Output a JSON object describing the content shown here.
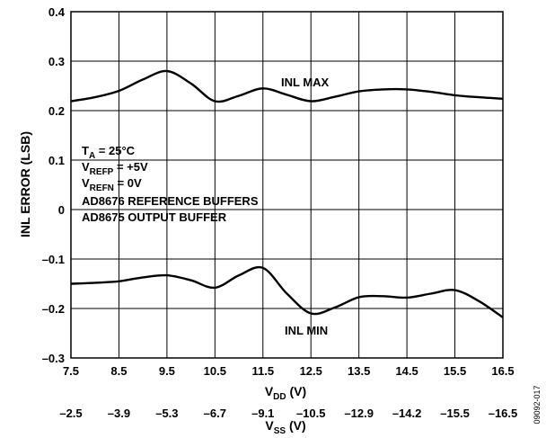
{
  "chart_data": {
    "type": "line",
    "x_ticks": [
      "7.5",
      "8.5",
      "9.5",
      "10.5",
      "11.5",
      "12.5",
      "13.5",
      "14.5",
      "15.5",
      "16.5"
    ],
    "x2_ticks": [
      "–2.5",
      "–3.9",
      "–5.3",
      "–6.7",
      "–9.1",
      "–10.5",
      "–12.9",
      "–14.2",
      "–15.5",
      "–16.5"
    ],
    "y_ticks": [
      "0.4",
      "0.3",
      "0.2",
      "0.1",
      "0",
      "–0.1",
      "–0.2",
      "–0.3"
    ],
    "xlim": [
      7.5,
      16.5
    ],
    "ylim": [
      -0.3,
      0.4
    ],
    "grid": true,
    "xlabel": {
      "main": "V",
      "sub": "DD",
      "unit": " (V)"
    },
    "x2label": {
      "main": "V",
      "sub": "SS",
      "unit": " (V)"
    },
    "ylabel": "INL ERROR (LSB)",
    "series": [
      {
        "name": "INL MAX",
        "x": [
          7.5,
          8.0,
          8.5,
          9.0,
          9.5,
          10.0,
          10.5,
          11.0,
          11.5,
          12.0,
          12.5,
          13.0,
          13.5,
          14.0,
          14.5,
          15.0,
          15.5,
          16.0,
          16.5
        ],
        "y": [
          0.219,
          0.227,
          0.24,
          0.263,
          0.28,
          0.255,
          0.219,
          0.23,
          0.245,
          0.232,
          0.219,
          0.228,
          0.239,
          0.243,
          0.243,
          0.238,
          0.231,
          0.227,
          0.224
        ]
      },
      {
        "name": "INL MIN",
        "x": [
          7.5,
          8.0,
          8.5,
          9.0,
          9.5,
          10.0,
          10.5,
          11.0,
          11.5,
          12.0,
          12.5,
          13.0,
          13.5,
          14.0,
          14.5,
          15.0,
          15.5,
          16.0,
          16.5
        ],
        "y": [
          -0.15,
          -0.148,
          -0.145,
          -0.137,
          -0.133,
          -0.143,
          -0.158,
          -0.133,
          -0.118,
          -0.17,
          -0.21,
          -0.198,
          -0.177,
          -0.175,
          -0.178,
          -0.17,
          -0.163,
          -0.185,
          -0.218
        ]
      }
    ],
    "annotations": {
      "inl_max": "INL MAX",
      "inl_min": "INL MIN",
      "ta": {
        "main": "T",
        "sub": "A",
        "rest": " = 25°C"
      },
      "vrefp": {
        "main": "V",
        "sub": "REFP",
        "rest": " = +5V"
      },
      "vrefn": {
        "main": "V",
        "sub": "REFN",
        "rest": " = 0V"
      },
      "line4": "AD8676 REFERENCE BUFFERS",
      "line5": "AD8675 OUTPUT BUFFER"
    },
    "figure_id": "09092-017"
  }
}
